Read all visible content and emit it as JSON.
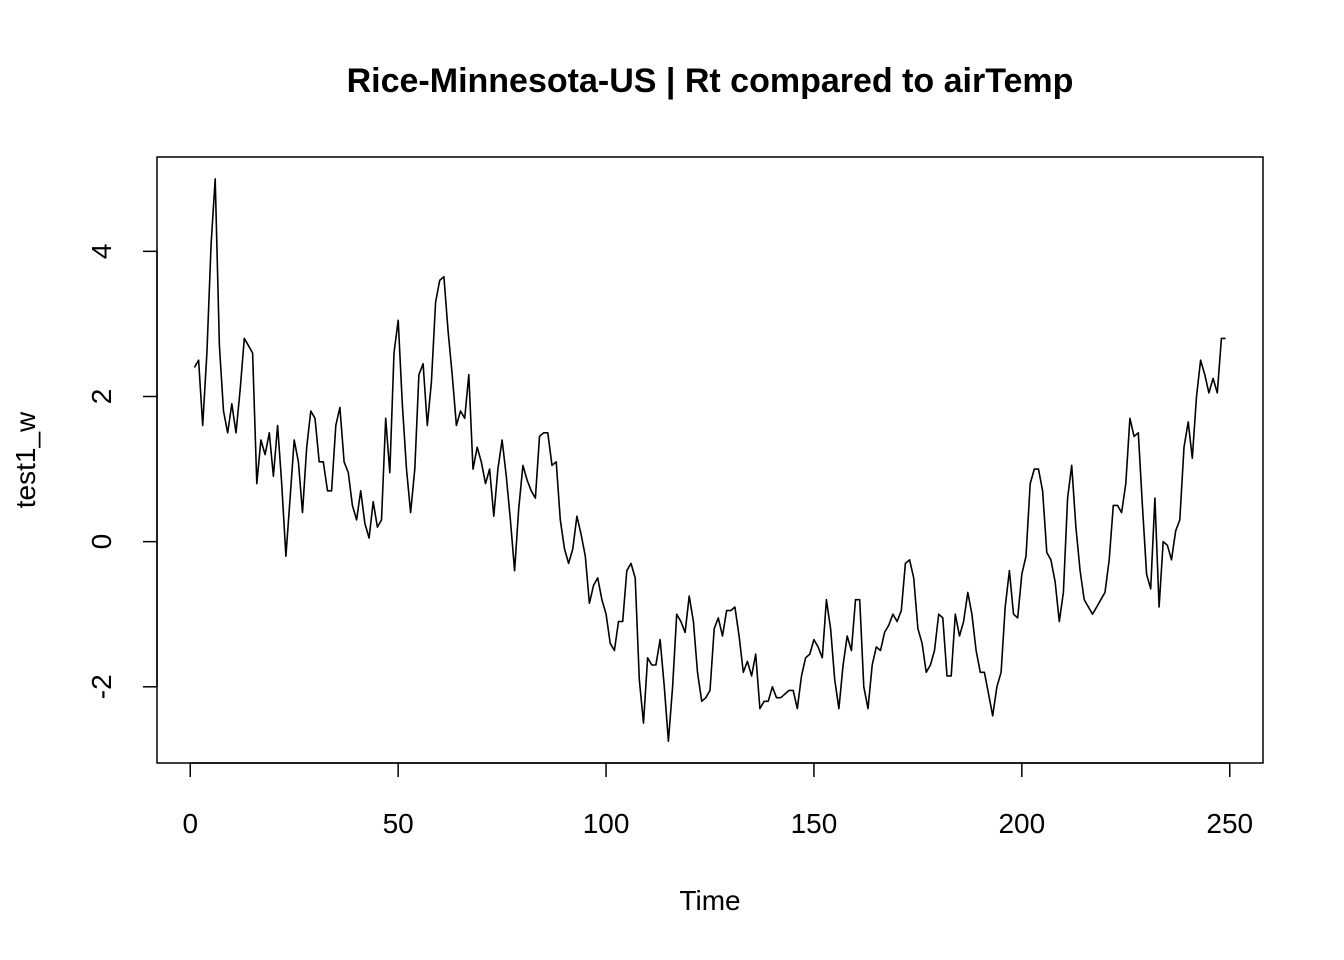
{
  "chart_data": {
    "type": "line",
    "title": "Rice-Minnesota-US | Rt compared to airTemp",
    "xlabel": "Time",
    "ylabel": "test1_w",
    "xlim": [
      -8,
      258
    ],
    "ylim": [
      -3.05,
      5.3
    ],
    "xticks": [
      0,
      50,
      100,
      150,
      200,
      250
    ],
    "yticks": [
      -2,
      0,
      2,
      4
    ],
    "xtick_labels": [
      "0",
      "50",
      "100",
      "150",
      "200",
      "250"
    ],
    "ytick_labels": [
      "-2",
      "0",
      "2",
      "4"
    ],
    "grid": false,
    "series": [
      {
        "x_start": 1,
        "x_step": 1,
        "color": "#000000",
        "values": [
          2.4,
          2.5,
          1.6,
          2.6,
          4.1,
          5.0,
          2.7,
          1.8,
          1.5,
          1.9,
          1.5,
          2.1,
          2.8,
          2.7,
          2.6,
          0.8,
          1.4,
          1.2,
          1.5,
          0.9,
          1.6,
          0.8,
          -0.2,
          0.6,
          1.4,
          1.1,
          0.4,
          1.3,
          1.8,
          1.7,
          1.1,
          1.1,
          0.7,
          0.7,
          1.6,
          1.85,
          1.1,
          0.95,
          0.5,
          0.3,
          0.7,
          0.25,
          0.05,
          0.55,
          0.2,
          0.3,
          1.7,
          0.95,
          2.6,
          3.05,
          1.9,
          1.0,
          0.4,
          1.0,
          2.3,
          2.45,
          1.6,
          2.2,
          3.3,
          3.6,
          3.65,
          2.9,
          2.3,
          1.6,
          1.8,
          1.7,
          2.3,
          1.0,
          1.3,
          1.1,
          0.8,
          1.0,
          0.35,
          1.0,
          1.4,
          0.9,
          0.3,
          -0.4,
          0.45,
          1.05,
          0.85,
          0.7,
          0.6,
          1.45,
          1.5,
          1.5,
          1.05,
          1.1,
          0.3,
          -0.1,
          -0.3,
          -0.1,
          0.35,
          0.1,
          -0.2,
          -0.85,
          -0.6,
          -0.5,
          -0.8,
          -1.0,
          -1.4,
          -1.5,
          -1.1,
          -1.1,
          -0.4,
          -0.3,
          -0.5,
          -1.9,
          -2.5,
          -1.6,
          -1.7,
          -1.7,
          -1.35,
          -2.0,
          -2.75,
          -2.0,
          -1.0,
          -1.1,
          -1.25,
          -0.75,
          -1.1,
          -1.8,
          -2.2,
          -2.15,
          -2.05,
          -1.2,
          -1.05,
          -1.3,
          -0.95,
          -0.95,
          -0.9,
          -1.3,
          -1.8,
          -1.65,
          -1.85,
          -1.55,
          -2.3,
          -2.2,
          -2.2,
          -2.0,
          -2.15,
          -2.15,
          -2.1,
          -2.05,
          -2.05,
          -2.3,
          -1.85,
          -1.6,
          -1.55,
          -1.35,
          -1.45,
          -1.6,
          -0.8,
          -1.2,
          -1.9,
          -2.3,
          -1.7,
          -1.3,
          -1.5,
          -0.8,
          -0.8,
          -2.0,
          -2.3,
          -1.7,
          -1.45,
          -1.5,
          -1.25,
          -1.15,
          -1.0,
          -1.1,
          -0.95,
          -0.3,
          -0.25,
          -0.5,
          -1.2,
          -1.4,
          -1.8,
          -1.7,
          -1.5,
          -1.0,
          -1.05,
          -1.85,
          -1.85,
          -1.0,
          -1.3,
          -1.1,
          -0.7,
          -1.0,
          -1.5,
          -1.8,
          -1.8,
          -2.1,
          -2.4,
          -2.0,
          -1.8,
          -0.9,
          -0.4,
          -1.0,
          -1.05,
          -0.45,
          -0.2,
          0.8,
          1.0,
          1.0,
          0.7,
          -0.15,
          -0.25,
          -0.55,
          -1.1,
          -0.7,
          0.6,
          1.05,
          0.2,
          -0.4,
          -0.8,
          -0.9,
          -1.0,
          -0.9,
          -0.8,
          -0.7,
          -0.25,
          0.5,
          0.5,
          0.4,
          0.8,
          1.7,
          1.45,
          1.5,
          0.5,
          -0.45,
          -0.65,
          0.6,
          -0.9,
          0.0,
          -0.05,
          -0.25,
          0.15,
          0.3,
          1.3,
          1.65,
          1.15,
          2.0,
          2.5,
          2.3,
          2.05,
          2.25,
          2.05,
          2.8,
          2.8
        ]
      }
    ]
  }
}
